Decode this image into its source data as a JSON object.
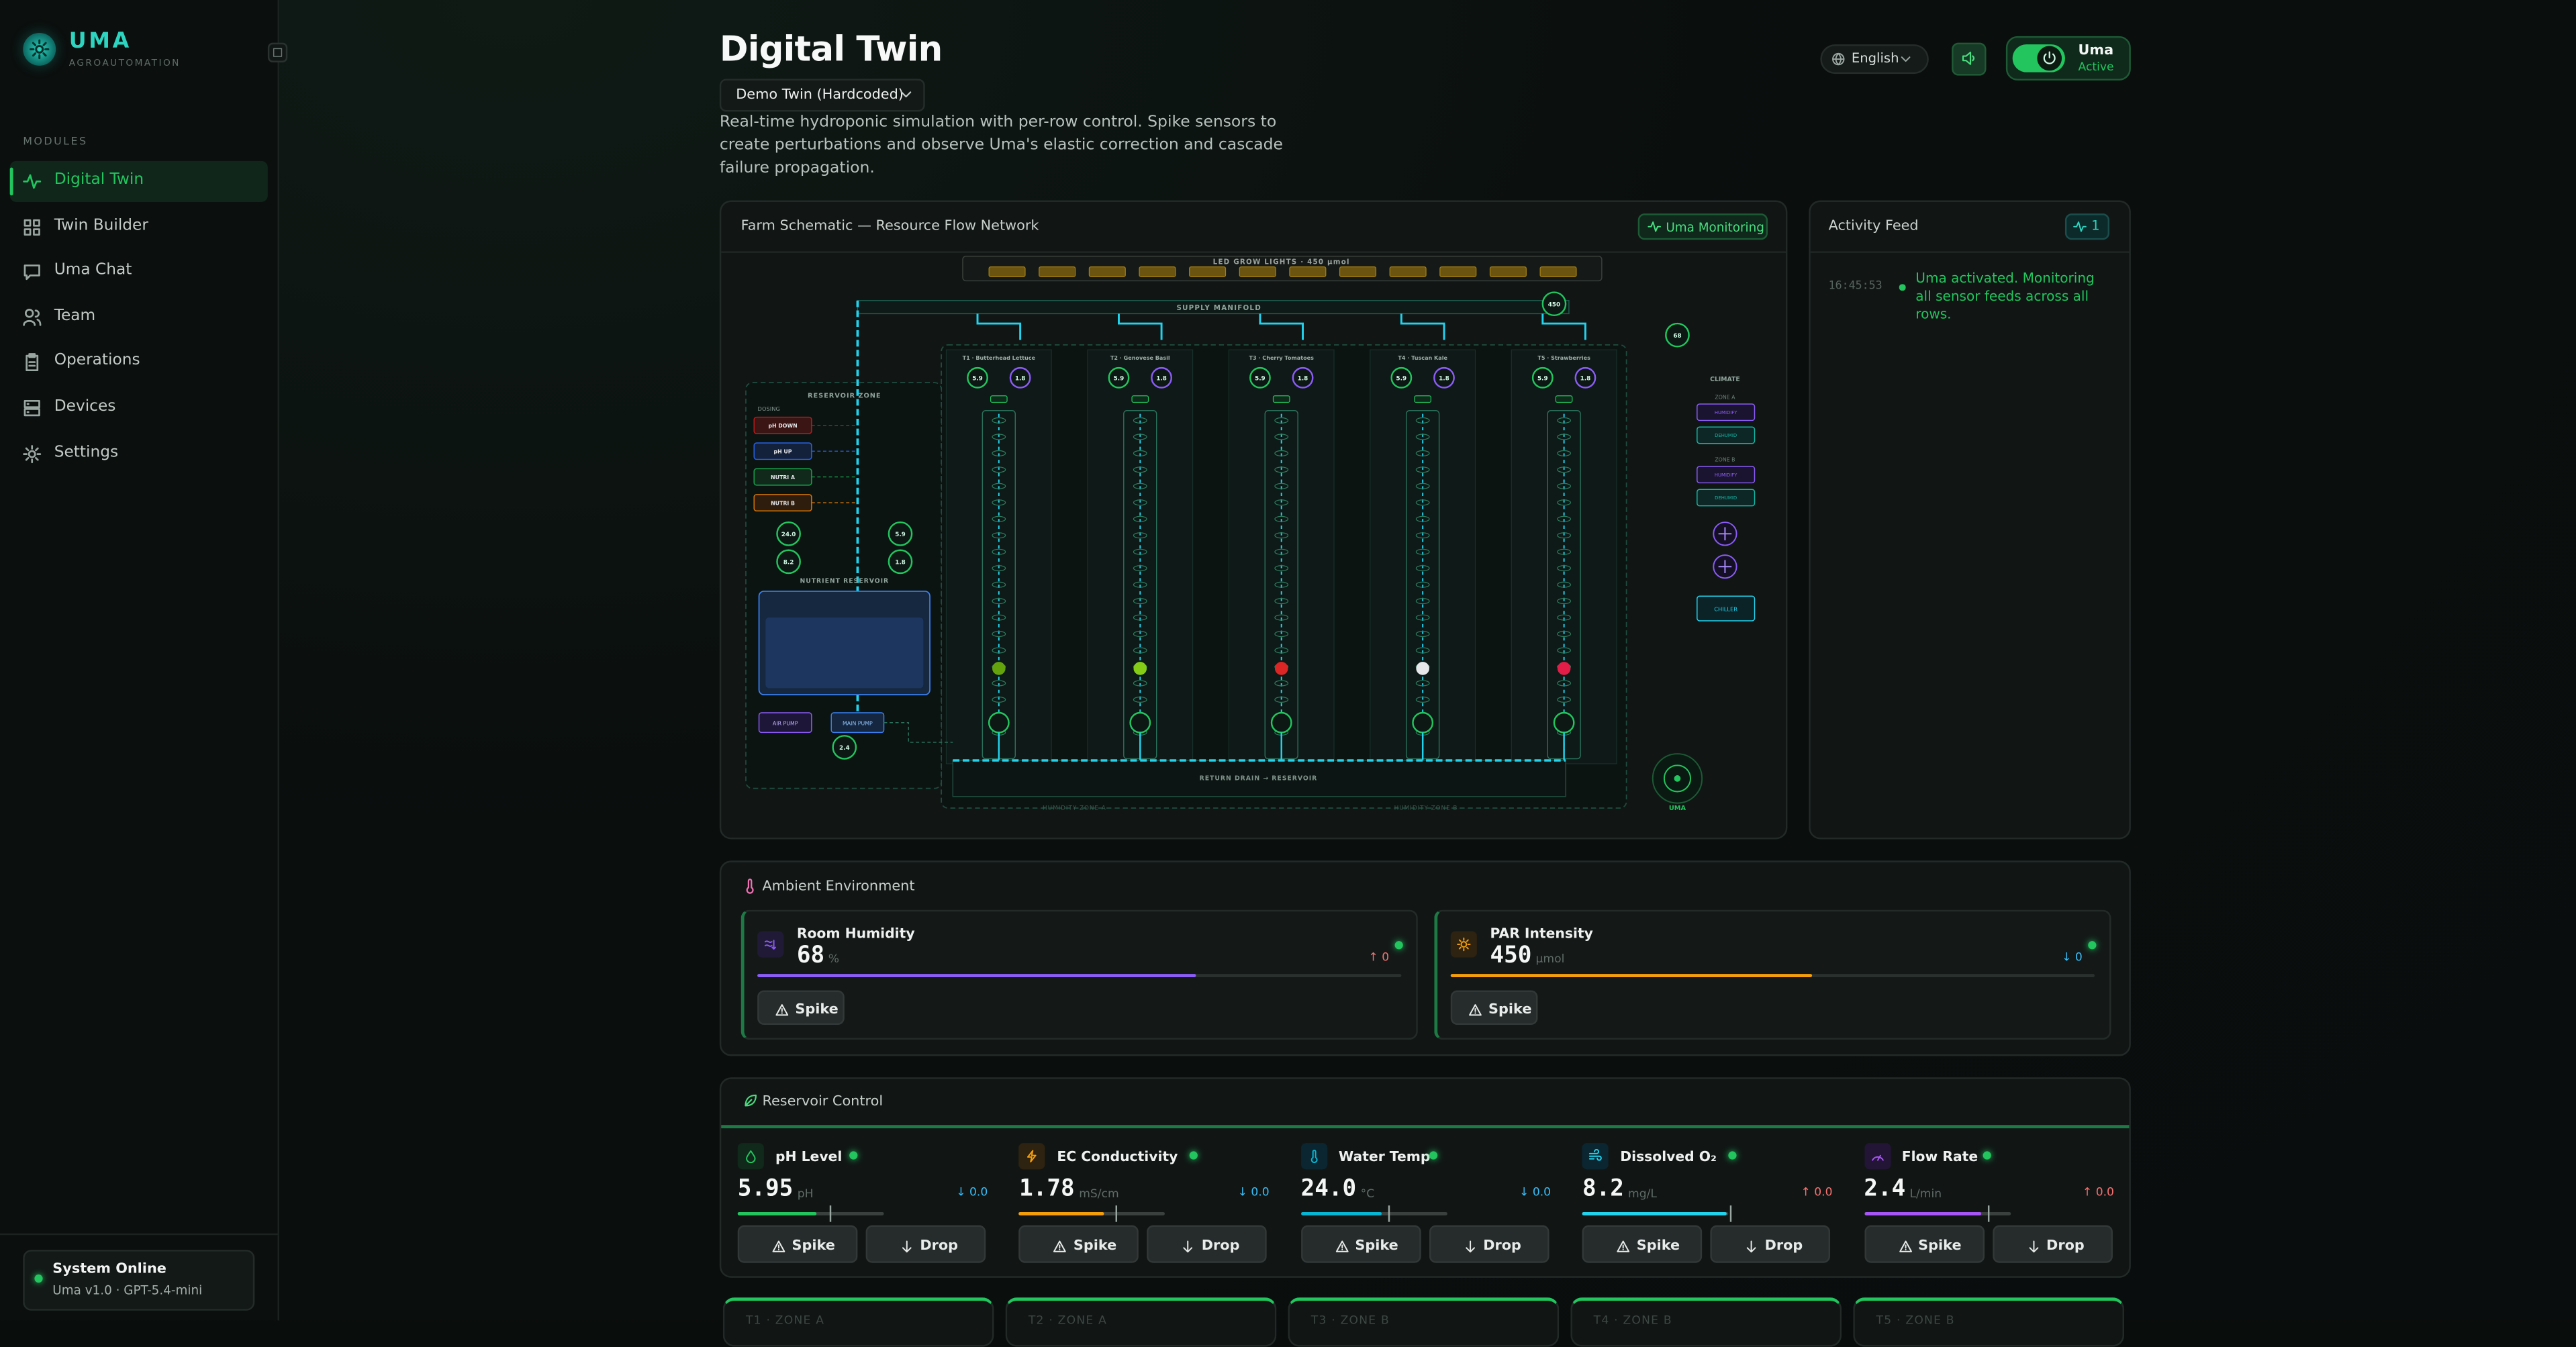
{
  "sidebar": {
    "brand": "UMA",
    "tagline": "AGROAUTOMATION",
    "section": "MODULES",
    "nav": [
      "Digital Twin",
      "Twin Builder",
      "Uma Chat",
      "Team",
      "Operations",
      "Devices",
      "Settings"
    ],
    "status": {
      "title": "System Online",
      "version": "Uma v1.0 · GPT-5.4-mini"
    }
  },
  "header": {
    "title": "Digital Twin",
    "twin_select": "Demo Twin (Hardcoded)",
    "description": "Real-time hydroponic simulation with per-row control. Spike sensors to create perturbations and observe Uma's elastic correction and cascade failure propagation.",
    "language": "English",
    "agent": {
      "name": "Uma",
      "state": "Active"
    }
  },
  "schematic": {
    "title": "Farm Schematic — Resource Flow Network",
    "badge": "Uma Monitoring",
    "lights": "LED GROW LIGHTS · 450 µmol",
    "manifold": "SUPPLY MANIFOLD",
    "manifold_sensor": "450",
    "rows": [
      {
        "label": "T1 · Butterhead Lettuce",
        "sensors": [
          "5.9",
          "1.8"
        ]
      },
      {
        "label": "T2 · Genovese Basil",
        "sensors": [
          "5.9",
          "1.8"
        ]
      },
      {
        "label": "T3 · Cherry Tomatoes",
        "sensors": [
          "5.9",
          "1.8"
        ]
      },
      {
        "label": "T4 · Tuscan Kale",
        "sensors": [
          "5.9",
          "1.8"
        ]
      },
      {
        "label": "T5 · Strawberries",
        "sensors": [
          "5.9",
          "1.8"
        ]
      }
    ],
    "reservoir_zone": "RESERVOIR ZONE",
    "dosing": "DOSING",
    "pumps": [
      "pH DOWN",
      "pH UP",
      "NUTRI A",
      "NUTRI B"
    ],
    "reservoir_sensors": [
      "24.0",
      "8.2",
      "5.9",
      "1.8"
    ],
    "tank": "NUTRIENT RESERVOIR",
    "air_pump": "AIR PUMP",
    "main_pump": "MAIN PUMP",
    "flow": "2.4",
    "drain": "RETURN DRAIN → RESERVOIR",
    "humidity_zones": [
      "HUMIDITY ZONE A",
      "HUMIDITY ZONE B"
    ],
    "climate": "CLIMATE",
    "climate_zones": [
      {
        "label": "ZONE A",
        "units": [
          "HUMIDIFY",
          "DEHUMID"
        ]
      },
      {
        "label": "ZONE B",
        "units": [
          "HUMIDIFY",
          "DEHUMID"
        ]
      }
    ],
    "chiller": "CHILLER",
    "humidity_sensor": "68",
    "uma": "UMA"
  },
  "activity": {
    "title": "Activity Feed",
    "count": "1",
    "events": [
      {
        "time": "16:45:53",
        "text": "Uma activated. Monitoring all sensor feeds across all rows."
      }
    ]
  },
  "ambient": {
    "title": "Ambient Environment",
    "cards": [
      {
        "name": "Room Humidity",
        "value": "68",
        "unit": "%",
        "delta": "↑ 0",
        "action": "Spike"
      },
      {
        "name": "PAR Intensity",
        "value": "450",
        "unit": "µmol",
        "delta": "↓ 0",
        "action": "Spike"
      }
    ]
  },
  "reservoir_control": {
    "title": "Reservoir Control",
    "cards": [
      {
        "name": "pH Level",
        "value": "5.95",
        "unit": "pH",
        "delta": "↓ 0.0",
        "actions": [
          "Spike",
          "Drop"
        ]
      },
      {
        "name": "EC Conductivity",
        "value": "1.78",
        "unit": "mS/cm",
        "delta": "↓ 0.0",
        "actions": [
          "Spike",
          "Drop"
        ]
      },
      {
        "name": "Water Temp",
        "value": "24.0",
        "unit": "°C",
        "delta": "↓ 0.0",
        "actions": [
          "Spike",
          "Drop"
        ]
      },
      {
        "name": "Dissolved O₂",
        "value": "8.2",
        "unit": "mg/L",
        "delta": "↑ 0.0",
        "actions": [
          "Spike",
          "Drop"
        ]
      },
      {
        "name": "Flow Rate",
        "value": "2.4",
        "unit": "L/min",
        "delta": "↑ 0.0",
        "actions": [
          "Spike",
          "Drop"
        ]
      }
    ]
  },
  "zones": [
    "T1 · ZONE A",
    "T2 · ZONE A",
    "T3 · ZONE B",
    "T4 · ZONE B",
    "T5 · ZONE B"
  ]
}
